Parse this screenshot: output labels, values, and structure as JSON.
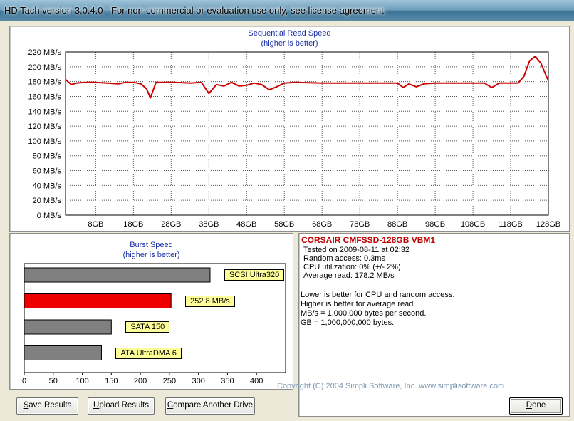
{
  "window": {
    "title": "HD Tach version 3.0.4.0  - For non-commercial or evaluation use only, see license agreement."
  },
  "colors": {
    "read_line": "#cc0000",
    "burst_highlight": "#ee0000",
    "burst_other": "#808080",
    "label_bg": "#ffff99",
    "title_blue": "#1a2fa8",
    "drive_red": "#c00000"
  },
  "sequential_chart": {
    "title_line1": "Sequential Read Speed",
    "title_line2": "(higher is better)"
  },
  "burst_chart": {
    "title_line1": "Burst Speed",
    "title_line2": "(higher is better)"
  },
  "chart_data": [
    {
      "type": "line",
      "title": "Sequential Read Speed",
      "subtitle": "(higher is better)",
      "ylim": [
        0,
        220
      ],
      "y_ticks": [
        0,
        20,
        40,
        60,
        80,
        100,
        120,
        140,
        160,
        180,
        200,
        220
      ],
      "y_tick_labels": [
        "0 MB/s",
        "20 MB/s",
        "40 MB/s",
        "60 MB/s",
        "80 MB/s",
        "100 MB/s",
        "120 MB/s",
        "140 MB/s",
        "160 MB/s",
        "180 MB/s",
        "200 MB/s",
        "220 MB/s"
      ],
      "xlim": [
        0,
        128
      ],
      "x_ticks": [
        8,
        18,
        28,
        38,
        48,
        58,
        68,
        78,
        88,
        98,
        108,
        118,
        128
      ],
      "x_tick_labels": [
        "8GB",
        "18GB",
        "28GB",
        "38GB",
        "48GB",
        "58GB",
        "68GB",
        "78GB",
        "88GB",
        "98GB",
        "108GB",
        "118GB",
        "128GB"
      ],
      "grid": true,
      "series": [
        {
          "x": [
            0,
            1.5,
            3,
            5,
            8,
            11,
            14,
            16,
            18,
            20,
            21.5,
            22.5,
            24,
            26,
            29,
            33,
            36,
            38,
            40,
            42,
            44,
            46,
            48,
            50,
            52,
            54,
            56,
            58,
            61,
            68,
            78,
            88,
            89.5,
            91,
            93,
            95,
            98,
            108,
            111,
            113,
            115,
            118,
            120,
            121.5,
            123,
            124.5,
            126,
            128
          ],
          "y": [
            183,
            176,
            178,
            179,
            179,
            178,
            177,
            179,
            179,
            177,
            170,
            158,
            179,
            179,
            179,
            178,
            179,
            164,
            176,
            174,
            179,
            174,
            175,
            178,
            176,
            169,
            173,
            178,
            179,
            178,
            178,
            178,
            172,
            177,
            173,
            177,
            178,
            178,
            178,
            172,
            178,
            178,
            178,
            187,
            208,
            214,
            205,
            181
          ]
        }
      ]
    },
    {
      "type": "bar",
      "orientation": "horizontal",
      "title": "Burst Speed",
      "subtitle": "(higher is better)",
      "xlim": [
        0,
        450
      ],
      "x_ticks": [
        0,
        50,
        100,
        150,
        200,
        250,
        300,
        350,
        400
      ],
      "categories": [
        "SCSI Ultra320",
        "252.8 MB/s",
        "SATA 150",
        "ATA UltraDMA 6"
      ],
      "values": [
        320,
        252.8,
        150,
        133
      ],
      "highlight_index": 1
    }
  ],
  "results": {
    "drive_name": "CORSAIR CMFSSD-128GB VBM1",
    "tested_on": "Tested on 2009-08-11 at 02:32",
    "random_access": "Random access: 0.3ms",
    "cpu_utilization": "CPU utilization: 0% (+/- 2%)",
    "average_read": "Average read: 178.2 MB/s",
    "notes": [
      "Lower is better for CPU and random access.",
      "Higher is better for average read.",
      "MB/s = 1,000,000 bytes per second.",
      "GB = 1,000,000,000 bytes."
    ]
  },
  "buttons": {
    "save": {
      "acc": "S",
      "rest": "ave Results"
    },
    "upload": {
      "acc": "U",
      "rest": "pload Results"
    },
    "compare": {
      "acc": "C",
      "rest": "ompare Another Drive"
    },
    "done": {
      "acc": "D",
      "rest": "one"
    }
  },
  "footer": {
    "copyright": "Copyright (C) 2004 Simpli Software, Inc. www.simplisoftware.com"
  }
}
